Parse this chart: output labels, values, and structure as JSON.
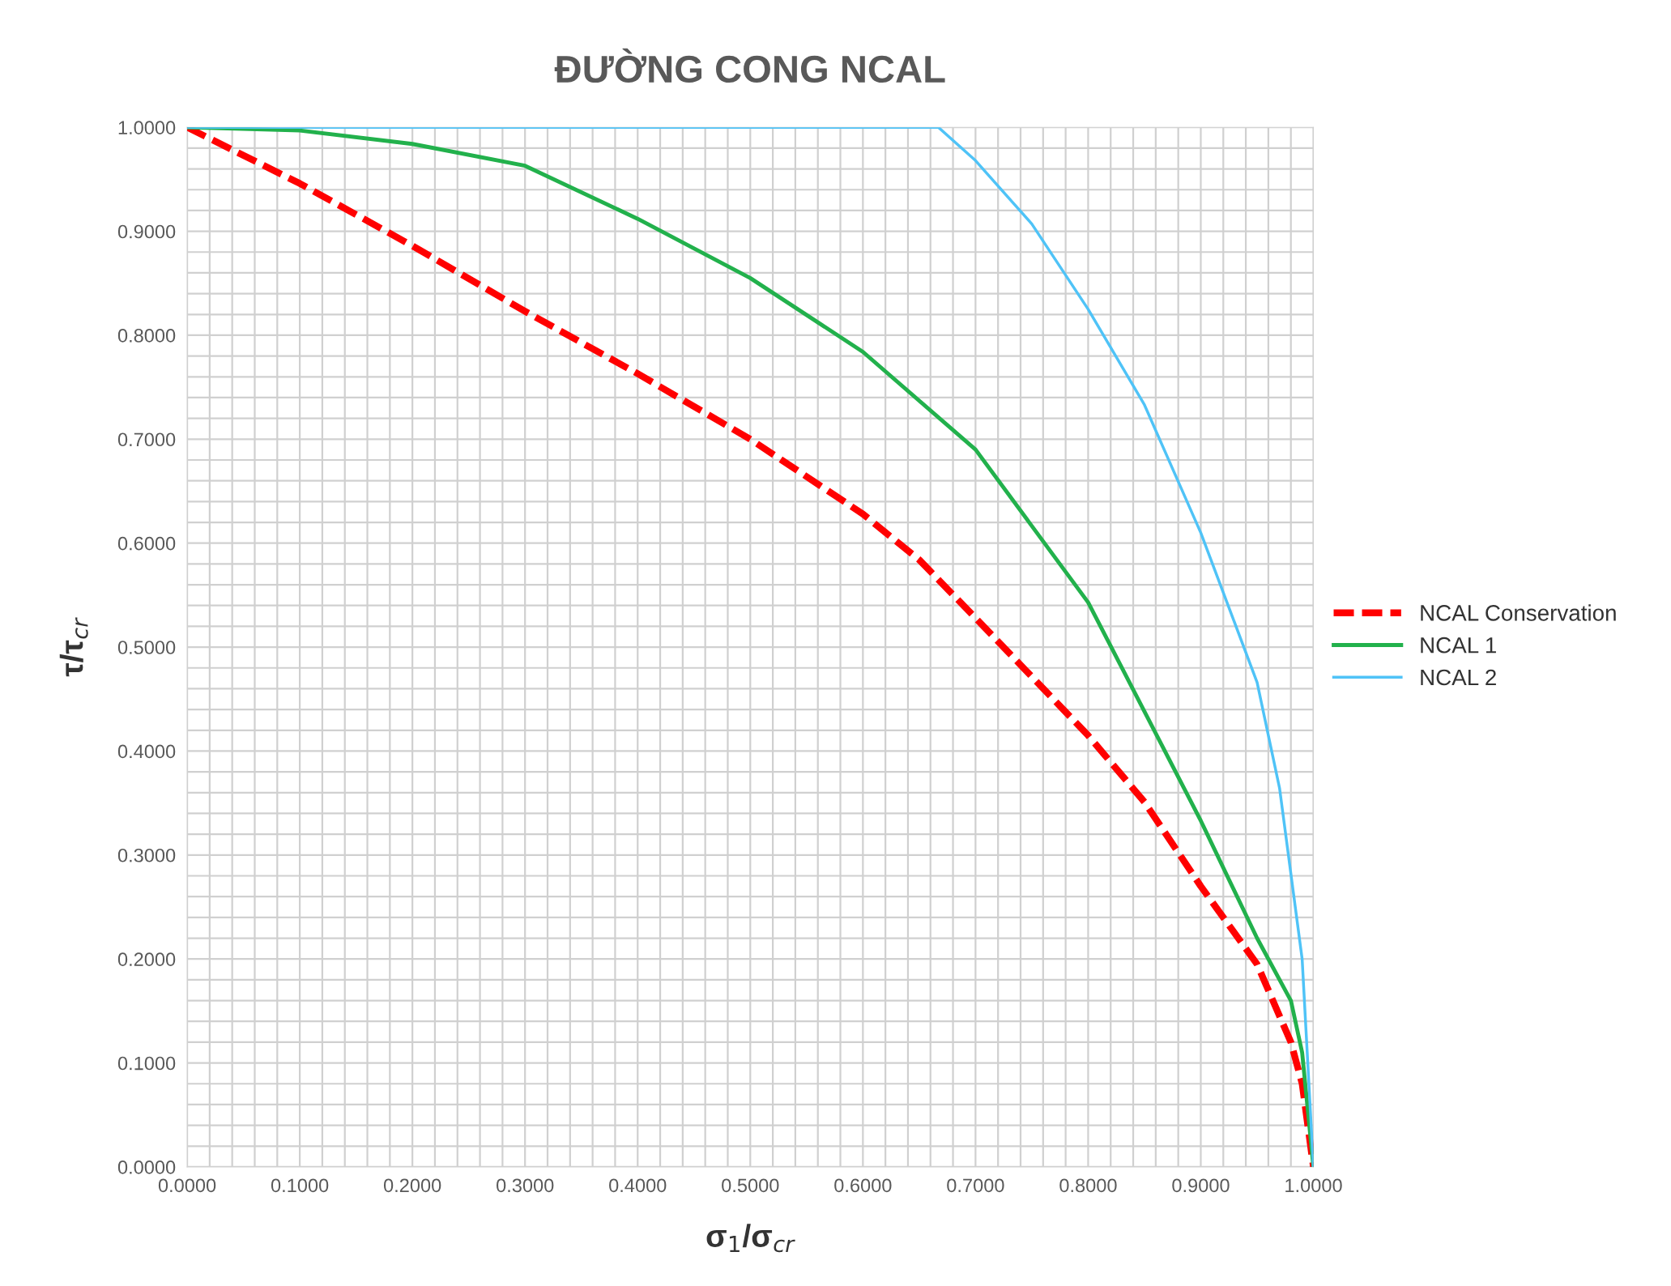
{
  "chart_data": {
    "type": "line",
    "title": "ĐƯỜNG CONG NCAL",
    "xlabel": "σ$_{1}$/σ$_{cr}$",
    "ylabel": "τ/τ$_{cr}$",
    "grid": true,
    "legend": "right",
    "xlim": [
      0,
      1
    ],
    "ylim": [
      0,
      1
    ],
    "xticks": [
      {
        "value": 0,
        "label": "0.0000"
      },
      {
        "value": 0.02,
        "label": null
      },
      {
        "value": 0.04,
        "label": null
      },
      {
        "value": 0.06,
        "label": null
      },
      {
        "value": 0.08,
        "label": null
      },
      {
        "value": 0.1,
        "label": "0.1000"
      },
      {
        "value": 0.12,
        "label": null
      },
      {
        "value": 0.14,
        "label": null
      },
      {
        "value": 0.16,
        "label": null
      },
      {
        "value": 0.18,
        "label": null
      },
      {
        "value": 0.2,
        "label": "0.2000"
      },
      {
        "value": 0.22,
        "label": null
      },
      {
        "value": 0.24,
        "label": null
      },
      {
        "value": 0.26,
        "label": null
      },
      {
        "value": 0.28,
        "label": null
      },
      {
        "value": 0.3,
        "label": "0.3000"
      },
      {
        "value": 0.32,
        "label": null
      },
      {
        "value": 0.34,
        "label": null
      },
      {
        "value": 0.36,
        "label": null
      },
      {
        "value": 0.38,
        "label": null
      },
      {
        "value": 0.4,
        "label": "0.4000"
      },
      {
        "value": 0.42,
        "label": null
      },
      {
        "value": 0.44,
        "label": null
      },
      {
        "value": 0.46,
        "label": null
      },
      {
        "value": 0.48,
        "label": null
      },
      {
        "value": 0.5,
        "label": "0.5000"
      },
      {
        "value": 0.52,
        "label": null
      },
      {
        "value": 0.54,
        "label": null
      },
      {
        "value": 0.56,
        "label": null
      },
      {
        "value": 0.58,
        "label": null
      },
      {
        "value": 0.6,
        "label": "0.6000"
      },
      {
        "value": 0.62,
        "label": null
      },
      {
        "value": 0.64,
        "label": null
      },
      {
        "value": 0.66,
        "label": null
      },
      {
        "value": 0.68,
        "label": null
      },
      {
        "value": 0.7,
        "label": "0.7000"
      },
      {
        "value": 0.72,
        "label": null
      },
      {
        "value": 0.74,
        "label": null
      },
      {
        "value": 0.76,
        "label": null
      },
      {
        "value": 0.78,
        "label": null
      },
      {
        "value": 0.8,
        "label": "0.8000"
      },
      {
        "value": 0.82,
        "label": null
      },
      {
        "value": 0.84,
        "label": null
      },
      {
        "value": 0.86,
        "label": null
      },
      {
        "value": 0.88,
        "label": null
      },
      {
        "value": 0.9,
        "label": "0.9000"
      },
      {
        "value": 0.92,
        "label": null
      },
      {
        "value": 0.94,
        "label": null
      },
      {
        "value": 0.96,
        "label": null
      },
      {
        "value": 0.98,
        "label": null
      },
      {
        "value": 1,
        "label": "1.0000"
      }
    ],
    "yticks": [
      {
        "value": 0,
        "label": "0.0000"
      },
      {
        "value": 0.02,
        "label": null
      },
      {
        "value": 0.04,
        "label": null
      },
      {
        "value": 0.06,
        "label": null
      },
      {
        "value": 0.08,
        "label": null
      },
      {
        "value": 0.1,
        "label": "0.1000"
      },
      {
        "value": 0.12,
        "label": null
      },
      {
        "value": 0.14,
        "label": null
      },
      {
        "value": 0.16,
        "label": null
      },
      {
        "value": 0.18,
        "label": null
      },
      {
        "value": 0.2,
        "label": "0.2000"
      },
      {
        "value": 0.22,
        "label": null
      },
      {
        "value": 0.24,
        "label": null
      },
      {
        "value": 0.26,
        "label": null
      },
      {
        "value": 0.28,
        "label": null
      },
      {
        "value": 0.3,
        "label": "0.3000"
      },
      {
        "value": 0.32,
        "label": null
      },
      {
        "value": 0.34,
        "label": null
      },
      {
        "value": 0.36,
        "label": null
      },
      {
        "value": 0.38,
        "label": null
      },
      {
        "value": 0.4,
        "label": "0.4000"
      },
      {
        "value": 0.42,
        "label": null
      },
      {
        "value": 0.44,
        "label": null
      },
      {
        "value": 0.46,
        "label": null
      },
      {
        "value": 0.48,
        "label": null
      },
      {
        "value": 0.5,
        "label": "0.5000"
      },
      {
        "value": 0.52,
        "label": null
      },
      {
        "value": 0.54,
        "label": null
      },
      {
        "value": 0.56,
        "label": null
      },
      {
        "value": 0.58,
        "label": null
      },
      {
        "value": 0.6,
        "label": "0.6000"
      },
      {
        "value": 0.62,
        "label": null
      },
      {
        "value": 0.64,
        "label": null
      },
      {
        "value": 0.66,
        "label": null
      },
      {
        "value": 0.68,
        "label": null
      },
      {
        "value": 0.7,
        "label": "0.7000"
      },
      {
        "value": 0.72,
        "label": null
      },
      {
        "value": 0.74,
        "label": null
      },
      {
        "value": 0.76,
        "label": null
      },
      {
        "value": 0.78,
        "label": null
      },
      {
        "value": 0.8,
        "label": "0.8000"
      },
      {
        "value": 0.82,
        "label": null
      },
      {
        "value": 0.84,
        "label": null
      },
      {
        "value": 0.86,
        "label": null
      },
      {
        "value": 0.88,
        "label": null
      },
      {
        "value": 0.9,
        "label": "0.9000"
      },
      {
        "value": 0.92,
        "label": null
      },
      {
        "value": 0.94,
        "label": null
      },
      {
        "value": 0.96,
        "label": null
      },
      {
        "value": 0.98,
        "label": null
      },
      {
        "value": 1,
        "label": "1.0000"
      }
    ],
    "series": [
      {
        "name": "NCAL Conservation",
        "color": "#ff0000",
        "line_style": "dashed",
        "x": [
          0,
          0.1,
          0.2,
          0.3,
          0.4,
          0.5,
          0.6,
          0.65,
          0.7,
          0.8,
          0.85,
          0.9,
          0.95,
          0.98,
          0.99,
          1.0
        ],
        "values": [
          1.0,
          0.946,
          0.886,
          0.823,
          0.763,
          0.7,
          0.628,
          0.584,
          0.528,
          0.415,
          0.351,
          0.27,
          0.195,
          0.12,
          0.08,
          0
        ]
      },
      {
        "name": "NCAL 1",
        "color": "#22b14c",
        "line_style": "solid",
        "x": [
          0,
          0.1,
          0.2,
          0.3,
          0.4,
          0.5,
          0.6,
          0.7,
          0.8,
          0.9,
          0.95,
          0.98,
          0.99,
          1.0
        ],
        "values": [
          1.0,
          0.997,
          0.984,
          0.963,
          0.912,
          0.855,
          0.784,
          0.69,
          0.543,
          0.333,
          0.22,
          0.16,
          0.11,
          0
        ]
      },
      {
        "name": "NCAL 2",
        "color": "#4fc3f7",
        "line_style": "solid",
        "x": [
          0,
          0.667,
          0.7,
          0.75,
          0.8,
          0.85,
          0.9,
          0.95,
          0.97,
          0.99,
          1.0
        ],
        "values": [
          1.0,
          1.0,
          0.968,
          0.907,
          0.825,
          0.733,
          0.61,
          0.466,
          0.364,
          0.2,
          0
        ]
      }
    ]
  }
}
